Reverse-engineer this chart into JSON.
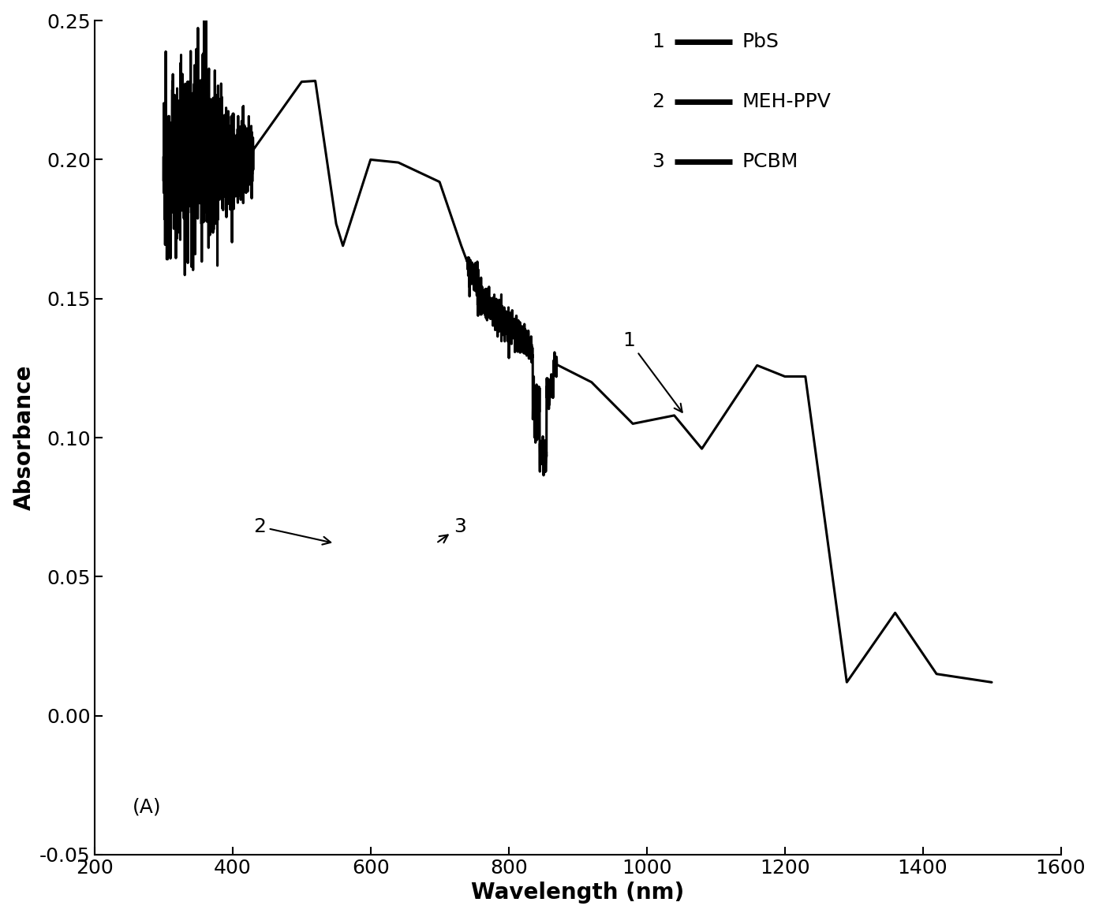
{
  "xlabel": "Wavelength (nm)",
  "ylabel": "Absorbance",
  "xlim": [
    200,
    1600
  ],
  "ylim": [
    -0.05,
    0.25
  ],
  "xticks": [
    200,
    400,
    600,
    800,
    1000,
    1200,
    1400,
    1600
  ],
  "yticks": [
    -0.05,
    0.0,
    0.05,
    0.1,
    0.15,
    0.2,
    0.25
  ],
  "line_color": "#000000",
  "background_color": "#ffffff",
  "axis_fontsize": 20,
  "tick_fontsize": 18,
  "legend_fontsize": 18,
  "annot_fontsize": 18
}
